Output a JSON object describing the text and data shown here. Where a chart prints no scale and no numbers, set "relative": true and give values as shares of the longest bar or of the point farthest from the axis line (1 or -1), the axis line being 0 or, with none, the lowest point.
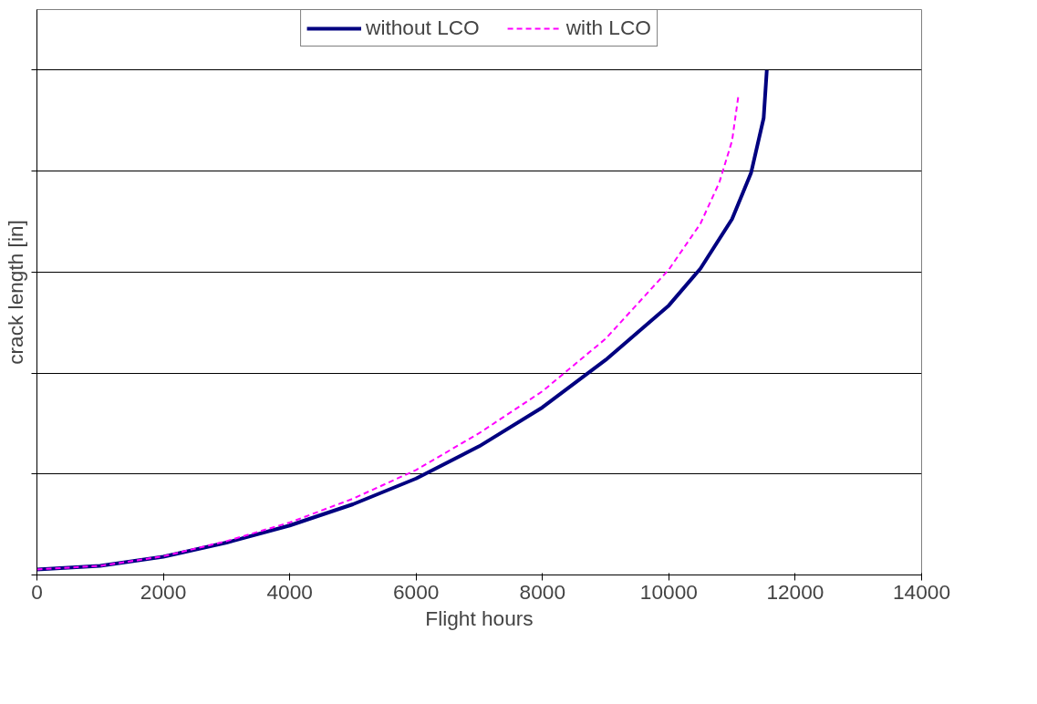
{
  "chart_data": {
    "type": "line",
    "relative": true,
    "xlabel": "Flight hours",
    "ylabel": "crack length [in]",
    "xlim": [
      0,
      14000
    ],
    "xticks": [
      0,
      2000,
      4000,
      6000,
      8000,
      10000,
      12000,
      14000
    ],
    "grid": "y",
    "legend": "top",
    "series": [
      {
        "name": "without LCO",
        "color": "#000080",
        "line_style": "solid",
        "x": [
          0,
          1000,
          2000,
          3000,
          4000,
          5000,
          6000,
          7000,
          8000,
          9000,
          10000,
          10500,
          11000,
          11300,
          11500,
          11550
        ],
        "values": [
          0.011,
          0.018,
          0.036,
          0.064,
          0.098,
          0.14,
          0.191,
          0.255,
          0.332,
          0.426,
          0.534,
          0.607,
          0.705,
          0.796,
          0.905,
          1.0
        ]
      },
      {
        "name": "with LCO",
        "color": "#ff00ff",
        "line_style": "dashed",
        "x": [
          0,
          1000,
          2000,
          3000,
          4000,
          5000,
          6000,
          7000,
          8000,
          9000,
          10000,
          10500,
          10800,
          11000,
          11100
        ],
        "values": [
          0.011,
          0.018,
          0.037,
          0.067,
          0.104,
          0.151,
          0.208,
          0.281,
          0.364,
          0.468,
          0.605,
          0.696,
          0.778,
          0.86,
          0.949
        ]
      }
    ]
  }
}
